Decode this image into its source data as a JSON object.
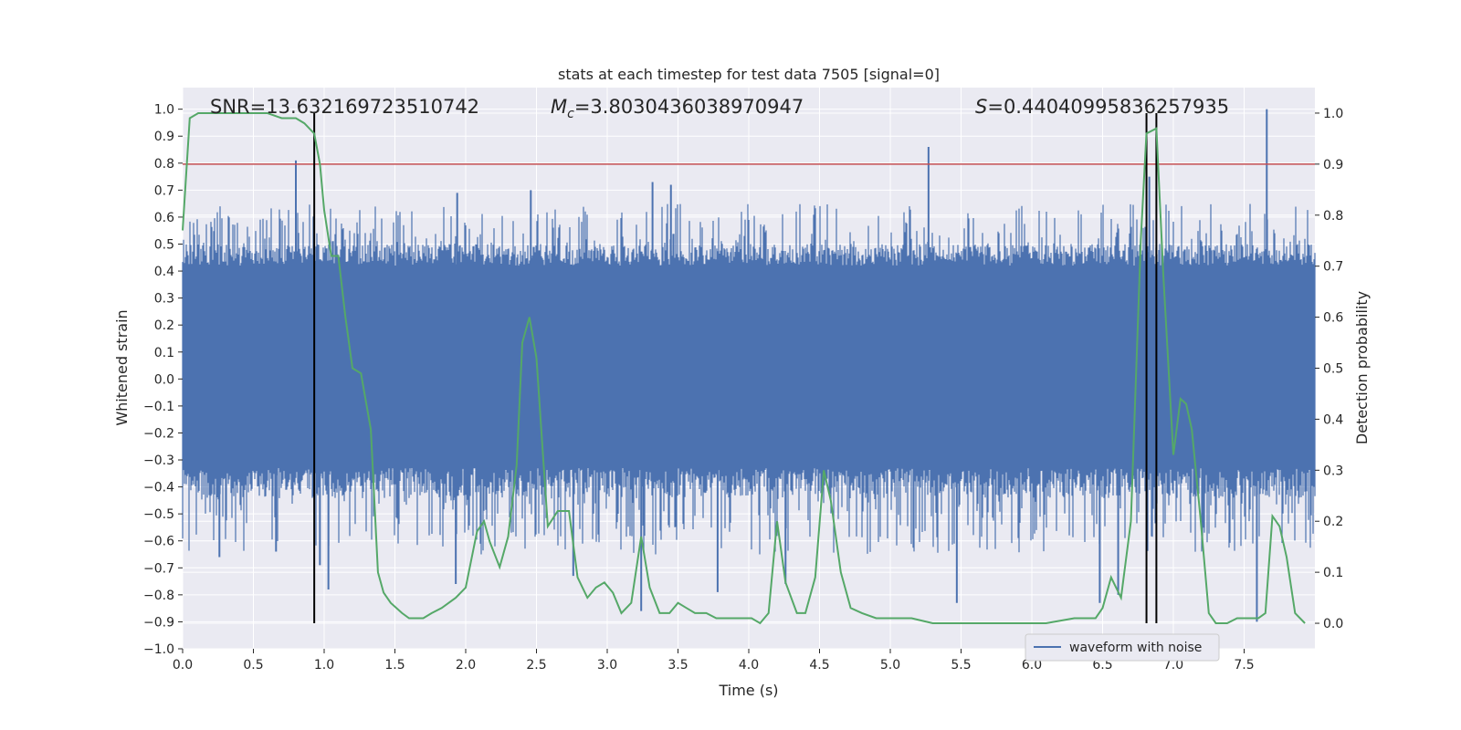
{
  "chart_data": {
    "type": "line",
    "title": "stats at each timestep for test data 7505 [signal=0]",
    "xlabel": "Time (s)",
    "ylabel": "Whitened strain",
    "y2label": "Detection probability",
    "xlim": [
      0.0,
      8.0
    ],
    "ylim": [
      -1.0,
      1.08
    ],
    "y2lim": [
      -0.05,
      1.05
    ],
    "xticks": [
      "0.0",
      "0.5",
      "1.0",
      "1.5",
      "2.0",
      "2.5",
      "3.0",
      "3.5",
      "4.0",
      "4.5",
      "5.0",
      "5.5",
      "6.0",
      "6.5",
      "7.0",
      "7.5"
    ],
    "yticks": [
      "-1.0",
      "-0.9",
      "-0.8",
      "-0.7",
      "-0.6",
      "-0.5",
      "-0.4",
      "-0.3",
      "-0.2",
      "-0.1",
      "0.0",
      "0.1",
      "0.2",
      "0.3",
      "0.4",
      "0.5",
      "0.6",
      "0.7",
      "0.8",
      "0.9",
      "1.0"
    ],
    "y2ticks": [
      "0.0",
      "0.1",
      "0.2",
      "0.3",
      "0.4",
      "0.5",
      "0.6",
      "0.7",
      "0.8",
      "0.9",
      "1.0"
    ],
    "grid": true,
    "legend_position": "lower-right",
    "annotations": {
      "snr": "SNR=13.632169723510742",
      "mc_symbol": "M",
      "mc_sub": "c",
      "mc_value": "=3.8030436038970947",
      "s_symbol": "S",
      "s_value": "=0.44040995836257935"
    },
    "threshold": {
      "axis": "y2",
      "value": 0.9,
      "color": "#c44e52"
    },
    "vlines": [
      0.93,
      6.81,
      6.88
    ],
    "series": [
      {
        "name": "waveform with noise",
        "axis": "y",
        "color": "#4c72b0",
        "x_range": [
          0.0,
          8.0
        ],
        "core_band": [
          -0.33,
          0.42
        ],
        "peak_range": [
          -0.65,
          0.65
        ],
        "spikes": [
          {
            "x": 0.8,
            "y": 0.81
          },
          {
            "x": 5.27,
            "y": 0.86
          },
          {
            "x": 7.66,
            "y": 1.0
          },
          {
            "x": 7.59,
            "y": -0.9
          },
          {
            "x": 6.83,
            "y": 0.75
          },
          {
            "x": 0.26,
            "y": -0.66
          },
          {
            "x": 0.66,
            "y": -0.64
          },
          {
            "x": 0.97,
            "y": -0.69
          },
          {
            "x": 1.03,
            "y": -0.78
          },
          {
            "x": 1.93,
            "y": -0.76
          },
          {
            "x": 2.76,
            "y": -0.73
          },
          {
            "x": 3.24,
            "y": -0.86
          },
          {
            "x": 3.78,
            "y": -0.79
          },
          {
            "x": 4.26,
            "y": -0.76
          },
          {
            "x": 5.47,
            "y": -0.83
          },
          {
            "x": 6.48,
            "y": -0.83
          },
          {
            "x": 6.61,
            "y": -0.8
          },
          {
            "x": 3.45,
            "y": 0.72
          },
          {
            "x": 3.32,
            "y": 0.73
          },
          {
            "x": 2.46,
            "y": 0.7
          },
          {
            "x": 1.94,
            "y": 0.69
          }
        ]
      },
      {
        "name": "",
        "axis": "y2",
        "color": "#55a868",
        "x": [
          0.0,
          0.05,
          0.11,
          0.2,
          0.3,
          0.4,
          0.5,
          0.6,
          0.7,
          0.75,
          0.8,
          0.86,
          0.93,
          0.97,
          1.0,
          1.05,
          1.1,
          1.15,
          1.2,
          1.26,
          1.33,
          1.38,
          1.42,
          1.47,
          1.55,
          1.6,
          1.65,
          1.7,
          1.76,
          1.83,
          1.93,
          2.0,
          2.08,
          2.13,
          2.17,
          2.24,
          2.3,
          2.36,
          2.4,
          2.45,
          2.5,
          2.58,
          2.65,
          2.73,
          2.79,
          2.86,
          2.92,
          2.98,
          3.04,
          3.1,
          3.17,
          3.24,
          3.3,
          3.37,
          3.44,
          3.5,
          3.56,
          3.62,
          3.7,
          3.77,
          3.84,
          3.9,
          3.96,
          4.02,
          4.08,
          4.14,
          4.2,
          4.26,
          4.34,
          4.4,
          4.47,
          4.53,
          4.58,
          4.65,
          4.72,
          4.8,
          4.9,
          5.0,
          5.15,
          5.3,
          5.5,
          5.7,
          5.9,
          6.1,
          6.3,
          6.45,
          6.5,
          6.56,
          6.63,
          6.7,
          6.77,
          6.81,
          6.88,
          6.93,
          7.0,
          7.05,
          7.09,
          7.13,
          7.19,
          7.25,
          7.3,
          7.38,
          7.45,
          7.5,
          7.55,
          7.6,
          7.65,
          7.7,
          7.75,
          7.8,
          7.86,
          7.93
        ],
        "values": [
          0.77,
          0.99,
          1.0,
          1.0,
          1.0,
          1.0,
          1.0,
          1.0,
          0.99,
          0.99,
          0.99,
          0.98,
          0.96,
          0.9,
          0.81,
          0.72,
          0.72,
          0.6,
          0.5,
          0.49,
          0.38,
          0.1,
          0.06,
          0.04,
          0.02,
          0.01,
          0.01,
          0.01,
          0.02,
          0.03,
          0.05,
          0.07,
          0.18,
          0.2,
          0.16,
          0.11,
          0.17,
          0.31,
          0.55,
          0.6,
          0.52,
          0.19,
          0.22,
          0.22,
          0.09,
          0.05,
          0.07,
          0.08,
          0.06,
          0.02,
          0.04,
          0.17,
          0.07,
          0.02,
          0.02,
          0.04,
          0.03,
          0.02,
          0.02,
          0.01,
          0.01,
          0.01,
          0.01,
          0.01,
          0.0,
          0.02,
          0.2,
          0.08,
          0.02,
          0.02,
          0.09,
          0.3,
          0.24,
          0.1,
          0.03,
          0.02,
          0.01,
          0.01,
          0.01,
          0.0,
          0.0,
          0.0,
          0.0,
          0.0,
          0.01,
          0.01,
          0.03,
          0.09,
          0.05,
          0.2,
          0.75,
          0.96,
          0.97,
          0.68,
          0.33,
          0.44,
          0.43,
          0.38,
          0.21,
          0.02,
          0.0,
          0.0,
          0.01,
          0.01,
          0.01,
          0.01,
          0.02,
          0.21,
          0.19,
          0.13,
          0.02,
          0.0
        ]
      }
    ]
  }
}
